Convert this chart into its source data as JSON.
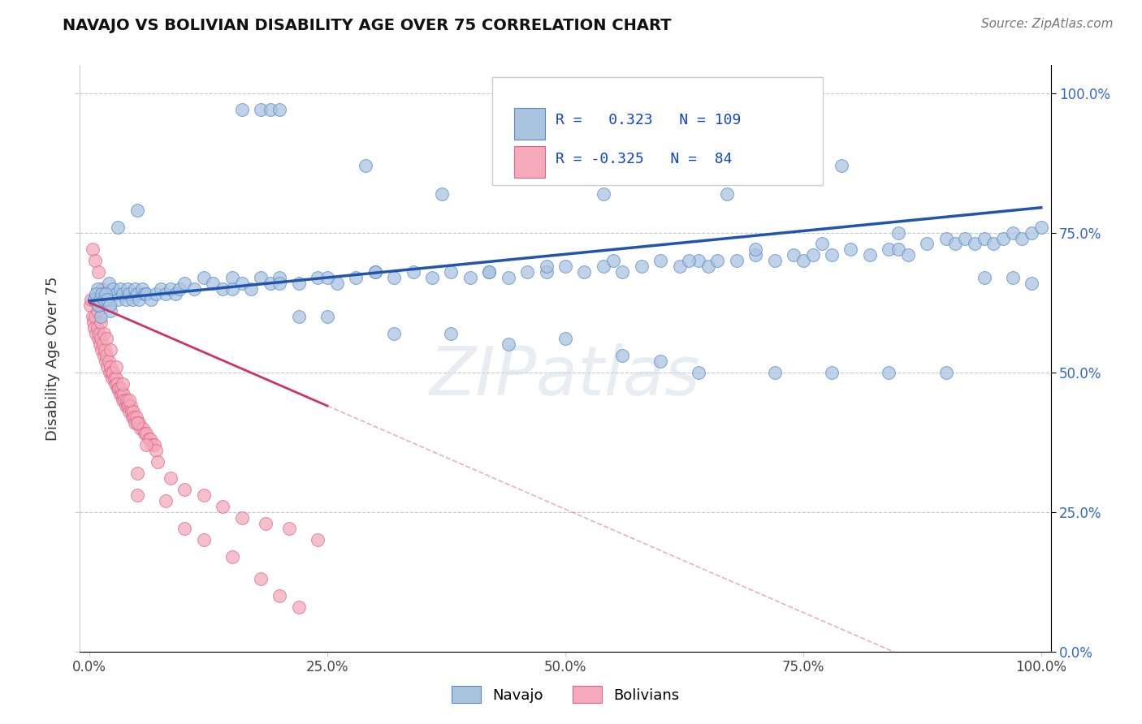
{
  "title": "NAVAJO VS BOLIVIAN DISABILITY AGE OVER 75 CORRELATION CHART",
  "source_text": "Source: ZipAtlas.com",
  "ylabel": "Disability Age Over 75",
  "navajo_R": 0.323,
  "navajo_N": 109,
  "bolivian_R": -0.325,
  "bolivian_N": 84,
  "navajo_color": "#aac4e0",
  "navajo_edge": "#5588cc",
  "bolivian_color": "#f4aabb",
  "bolivian_edge": "#dd6688",
  "trend_navajo_color": "#2255aa",
  "trend_bolivian_color": "#cc3366",
  "legend_R_color": "#1144cc",
  "background": "#ffffff",
  "grid_color": "#cccccc",
  "navajo_x": [
    0.005,
    0.008,
    0.01,
    0.012,
    0.015,
    0.018,
    0.02,
    0.022,
    0.025,
    0.028,
    0.03,
    0.032,
    0.035,
    0.038,
    0.04,
    0.042,
    0.045,
    0.048,
    0.05,
    0.052,
    0.055,
    0.058,
    0.06,
    0.065,
    0.07,
    0.075,
    0.08,
    0.085,
    0.09,
    0.095,
    0.1,
    0.11,
    0.12,
    0.13,
    0.14,
    0.15,
    0.16,
    0.17,
    0.18,
    0.19,
    0.2,
    0.22,
    0.24,
    0.26,
    0.28,
    0.3,
    0.32,
    0.34,
    0.36,
    0.38,
    0.4,
    0.42,
    0.44,
    0.46,
    0.48,
    0.5,
    0.52,
    0.54,
    0.56,
    0.58,
    0.6,
    0.62,
    0.64,
    0.65,
    0.66,
    0.68,
    0.7,
    0.72,
    0.74,
    0.75,
    0.76,
    0.78,
    0.8,
    0.82,
    0.84,
    0.85,
    0.86,
    0.88,
    0.9,
    0.91,
    0.92,
    0.93,
    0.94,
    0.95,
    0.96,
    0.97,
    0.98,
    0.99,
    1.0,
    0.005,
    0.007,
    0.009,
    0.011,
    0.013,
    0.015,
    0.017,
    0.019,
    0.021,
    0.15,
    0.2,
    0.25,
    0.3,
    0.42,
    0.48,
    0.55,
    0.63,
    0.7,
    0.77,
    0.85
  ],
  "navajo_y": [
    0.63,
    0.65,
    0.62,
    0.6,
    0.64,
    0.63,
    0.66,
    0.61,
    0.65,
    0.64,
    0.63,
    0.65,
    0.64,
    0.63,
    0.65,
    0.64,
    0.63,
    0.65,
    0.64,
    0.63,
    0.65,
    0.64,
    0.64,
    0.63,
    0.64,
    0.65,
    0.64,
    0.65,
    0.64,
    0.65,
    0.66,
    0.65,
    0.67,
    0.66,
    0.65,
    0.67,
    0.66,
    0.65,
    0.67,
    0.66,
    0.67,
    0.66,
    0.67,
    0.66,
    0.67,
    0.68,
    0.67,
    0.68,
    0.67,
    0.68,
    0.67,
    0.68,
    0.67,
    0.68,
    0.68,
    0.69,
    0.68,
    0.69,
    0.68,
    0.69,
    0.7,
    0.69,
    0.7,
    0.69,
    0.7,
    0.7,
    0.71,
    0.7,
    0.71,
    0.7,
    0.71,
    0.71,
    0.72,
    0.71,
    0.72,
    0.72,
    0.71,
    0.73,
    0.74,
    0.73,
    0.74,
    0.73,
    0.74,
    0.73,
    0.74,
    0.75,
    0.74,
    0.75,
    0.76,
    0.63,
    0.64,
    0.62,
    0.63,
    0.64,
    0.63,
    0.64,
    0.63,
    0.62,
    0.65,
    0.66,
    0.67,
    0.68,
    0.68,
    0.69,
    0.7,
    0.7,
    0.72,
    0.73,
    0.75
  ],
  "navajo_x_outliers": [
    0.16,
    0.18,
    0.19,
    0.2,
    0.29,
    0.37,
    0.44,
    0.54,
    0.6,
    0.67,
    0.72,
    0.79
  ],
  "navajo_y_outliers": [
    0.97,
    0.97,
    0.97,
    0.97,
    0.87,
    0.82,
    0.85,
    0.82,
    0.87,
    0.82,
    0.85,
    0.87
  ],
  "navajo_x_low": [
    0.03,
    0.05,
    0.22,
    0.25,
    0.32,
    0.38,
    0.44,
    0.5,
    0.56,
    0.6,
    0.64,
    0.72,
    0.78,
    0.84,
    0.9,
    0.94,
    0.97,
    0.99
  ],
  "navajo_y_low": [
    0.76,
    0.79,
    0.6,
    0.6,
    0.57,
    0.57,
    0.55,
    0.56,
    0.53,
    0.52,
    0.5,
    0.5,
    0.5,
    0.5,
    0.5,
    0.67,
    0.67,
    0.66
  ],
  "bolivian_x": [
    0.001,
    0.002,
    0.003,
    0.004,
    0.005,
    0.006,
    0.007,
    0.008,
    0.009,
    0.01,
    0.011,
    0.012,
    0.013,
    0.014,
    0.015,
    0.016,
    0.017,
    0.018,
    0.019,
    0.02,
    0.021,
    0.022,
    0.023,
    0.024,
    0.025,
    0.026,
    0.027,
    0.028,
    0.029,
    0.03,
    0.031,
    0.032,
    0.033,
    0.034,
    0.035,
    0.036,
    0.037,
    0.038,
    0.039,
    0.04,
    0.041,
    0.042,
    0.043,
    0.044,
    0.045,
    0.046,
    0.047,
    0.048,
    0.049,
    0.05,
    0.052,
    0.054,
    0.056,
    0.058,
    0.06,
    0.062,
    0.064,
    0.066,
    0.068,
    0.07,
    0.005,
    0.008,
    0.012,
    0.015,
    0.018,
    0.022,
    0.028,
    0.035,
    0.042,
    0.05,
    0.06,
    0.072,
    0.085,
    0.1,
    0.12,
    0.14,
    0.16,
    0.185,
    0.21,
    0.24,
    0.003,
    0.006,
    0.009,
    0.013
  ],
  "bolivian_y": [
    0.62,
    0.63,
    0.6,
    0.59,
    0.58,
    0.6,
    0.57,
    0.58,
    0.56,
    0.57,
    0.55,
    0.56,
    0.54,
    0.55,
    0.53,
    0.54,
    0.52,
    0.53,
    0.51,
    0.52,
    0.5,
    0.51,
    0.5,
    0.49,
    0.5,
    0.49,
    0.48,
    0.49,
    0.48,
    0.47,
    0.47,
    0.46,
    0.47,
    0.46,
    0.45,
    0.46,
    0.45,
    0.44,
    0.45,
    0.44,
    0.44,
    0.43,
    0.44,
    0.43,
    0.42,
    0.43,
    0.42,
    0.41,
    0.42,
    0.41,
    0.41,
    0.4,
    0.4,
    0.39,
    0.39,
    0.38,
    0.38,
    0.37,
    0.37,
    0.36,
    0.63,
    0.61,
    0.59,
    0.57,
    0.56,
    0.54,
    0.51,
    0.48,
    0.45,
    0.41,
    0.37,
    0.34,
    0.31,
    0.29,
    0.28,
    0.26,
    0.24,
    0.23,
    0.22,
    0.2,
    0.72,
    0.7,
    0.68,
    0.65
  ],
  "bolivian_x_low": [
    0.05,
    0.1,
    0.15,
    0.18,
    0.2,
    0.22,
    0.05,
    0.08,
    0.12
  ],
  "bolivian_y_low": [
    0.28,
    0.22,
    0.17,
    0.13,
    0.1,
    0.08,
    0.32,
    0.27,
    0.2
  ],
  "ytick_labels": [
    "0.0%",
    "25.0%",
    "50.0%",
    "75.0%",
    "100.0%"
  ],
  "ytick_values": [
    0.0,
    0.25,
    0.5,
    0.75,
    1.0
  ],
  "xtick_labels": [
    "0.0%",
    "25.0%",
    "50.0%",
    "75.0%",
    "100.0%"
  ],
  "xtick_values": [
    0.0,
    0.25,
    0.5,
    0.75,
    1.0
  ],
  "xlim": [
    -0.01,
    1.01
  ],
  "ylim": [
    0.0,
    1.05
  ],
  "navajo_trend_x0": 0.0,
  "navajo_trend_y0": 0.628,
  "navajo_trend_x1": 1.0,
  "navajo_trend_y1": 0.795,
  "bolivian_trend_x0": 0.0,
  "bolivian_trend_y0": 0.625,
  "bolivian_trend_x1": 0.25,
  "bolivian_trend_y1": 0.44
}
